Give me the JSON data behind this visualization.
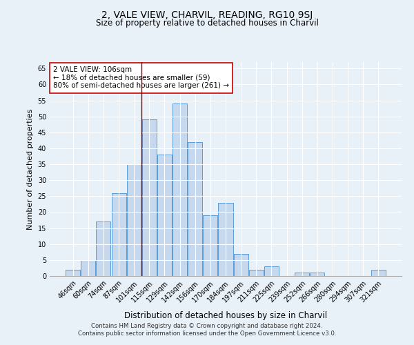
{
  "title": "2, VALE VIEW, CHARVIL, READING, RG10 9SJ",
  "subtitle": "Size of property relative to detached houses in Charvil",
  "xlabel": "Distribution of detached houses by size in Charvil",
  "ylabel": "Number of detached properties",
  "bar_labels": [
    "46sqm",
    "60sqm",
    "74sqm",
    "87sqm",
    "101sqm",
    "115sqm",
    "129sqm",
    "142sqm",
    "156sqm",
    "170sqm",
    "184sqm",
    "197sqm",
    "211sqm",
    "225sqm",
    "239sqm",
    "252sqm",
    "266sqm",
    "280sqm",
    "294sqm",
    "307sqm",
    "321sqm"
  ],
  "bar_values": [
    2,
    5,
    17,
    26,
    35,
    49,
    38,
    54,
    42,
    19,
    23,
    7,
    2,
    3,
    0,
    1,
    1,
    0,
    0,
    0,
    2
  ],
  "bar_color": "#c5d8ed",
  "bar_edge_color": "#5b9bd5",
  "ylim": [
    0,
    67
  ],
  "yticks": [
    0,
    5,
    10,
    15,
    20,
    25,
    30,
    35,
    40,
    45,
    50,
    55,
    60,
    65
  ],
  "property_line_x": 4.5,
  "annotation_text": "2 VALE VIEW: 106sqm\n← 18% of detached houses are smaller (59)\n80% of semi-detached houses are larger (261) →",
  "annotation_box_color": "#ffffff",
  "annotation_border_color": "#cc0000",
  "footnote1": "Contains HM Land Registry data © Crown copyright and database right 2024.",
  "footnote2": "Contains public sector information licensed under the Open Government Licence v3.0.",
  "background_color": "#e8f0f8",
  "plot_background": "#e8f0f8",
  "grid_color": "#ffffff",
  "title_fontsize": 10,
  "subtitle_fontsize": 8.5,
  "xlabel_fontsize": 8.5,
  "ylabel_fontsize": 8,
  "tick_fontsize": 7,
  "annotation_fontsize": 7.5
}
